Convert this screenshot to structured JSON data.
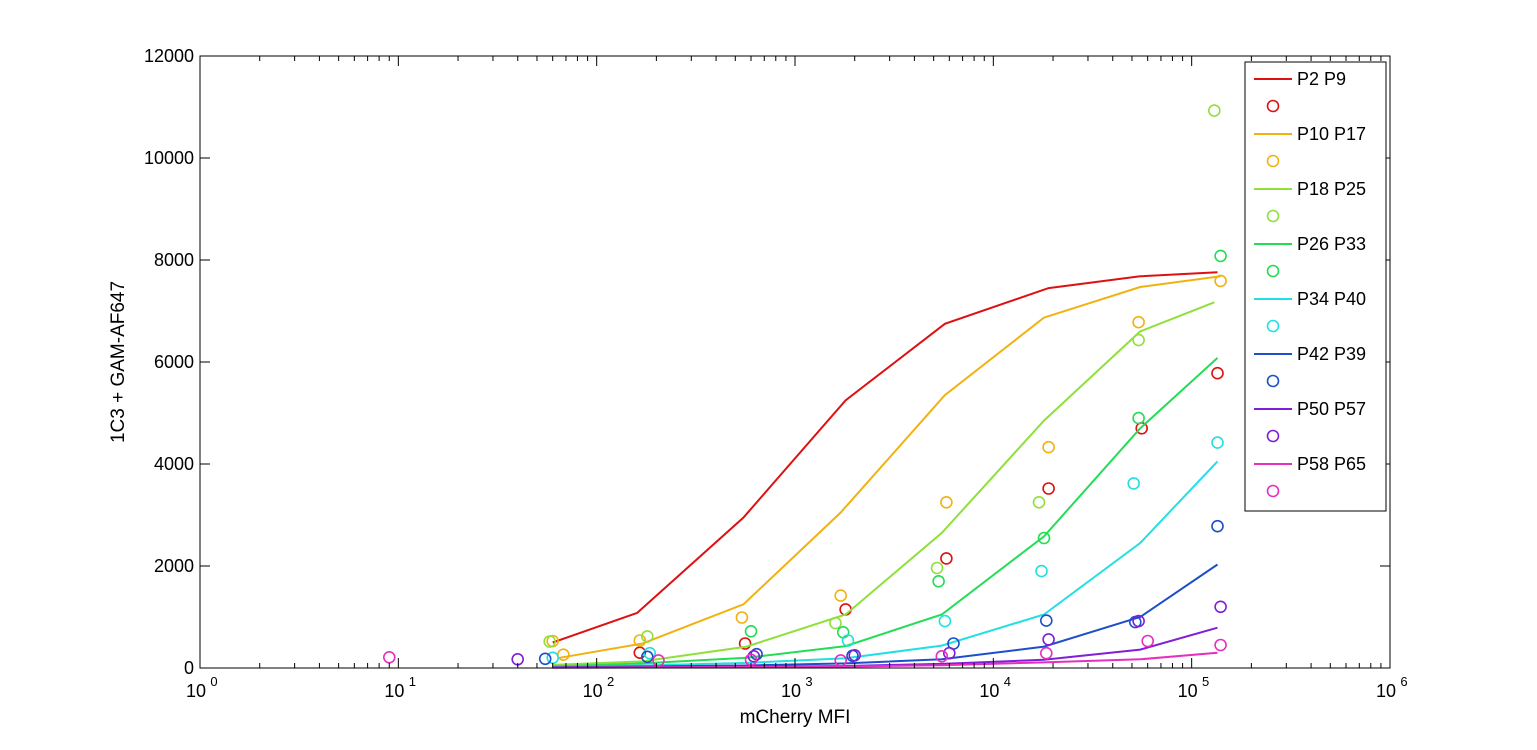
{
  "chart_data": {
    "type": "scatter",
    "title": "",
    "xlabel": "mCherry MFI",
    "ylabel": "1C3 + GAM-AF647",
    "xscale": "log",
    "xlim": [
      1,
      1000000
    ],
    "ylim": [
      0,
      12000
    ],
    "x_ticks": [
      {
        "base": "10",
        "exp": "0"
      },
      {
        "base": "10",
        "exp": "1"
      },
      {
        "base": "10",
        "exp": "2"
      },
      {
        "base": "10",
        "exp": "3"
      },
      {
        "base": "10",
        "exp": "4"
      },
      {
        "base": "10",
        "exp": "5"
      },
      {
        "base": "10",
        "exp": "6"
      }
    ],
    "y_ticks": [
      "0",
      "2000",
      "4000",
      "6000",
      "8000",
      "10000",
      "12000"
    ],
    "y_tick_values": [
      0,
      2000,
      4000,
      6000,
      8000,
      10000,
      12000
    ],
    "grid": false,
    "legend_position": "top-right",
    "series": [
      {
        "name": "P2 P9",
        "color": "#dd1111",
        "line": [
          [
            60,
            500
          ],
          [
            160,
            1080
          ],
          [
            550,
            2950
          ],
          [
            1800,
            5250
          ],
          [
            5700,
            6750
          ],
          [
            19000,
            7450
          ],
          [
            55000,
            7680
          ],
          [
            135000,
            7760
          ]
        ],
        "points": [
          [
            165,
            300
          ],
          [
            560,
            480
          ],
          [
            1800,
            1150
          ],
          [
            5800,
            2150
          ],
          [
            19000,
            3520
          ],
          [
            56000,
            4700
          ],
          [
            135000,
            5780
          ]
        ]
      },
      {
        "name": "P10 P17",
        "color": "#f2b10f",
        "line": [
          [
            65,
            200
          ],
          [
            170,
            480
          ],
          [
            550,
            1250
          ],
          [
            1700,
            3050
          ],
          [
            5700,
            5350
          ],
          [
            18000,
            6870
          ],
          [
            55000,
            7470
          ],
          [
            140000,
            7680
          ]
        ],
        "points": [
          [
            60,
            530
          ],
          [
            68,
            260
          ],
          [
            165,
            540
          ],
          [
            540,
            990
          ],
          [
            1700,
            1420
          ],
          [
            5800,
            3250
          ],
          [
            19000,
            4330
          ],
          [
            54000,
            6780
          ],
          [
            140000,
            7590
          ]
        ]
      },
      {
        "name": "P18 P25",
        "color": "#8fe03a",
        "line": [
          [
            60,
            60
          ],
          [
            170,
            130
          ],
          [
            570,
            420
          ],
          [
            1800,
            1050
          ],
          [
            5500,
            2650
          ],
          [
            18000,
            4850
          ],
          [
            55000,
            6600
          ],
          [
            130000,
            7170
          ]
        ],
        "points": [
          [
            58,
            520
          ],
          [
            180,
            620
          ],
          [
            1600,
            880
          ],
          [
            5200,
            1960
          ],
          [
            17000,
            3250
          ],
          [
            54000,
            6430
          ],
          [
            130000,
            10930
          ]
        ]
      },
      {
        "name": "P26 P33",
        "color": "#22dd55",
        "line": [
          [
            60,
            30
          ],
          [
            170,
            90
          ],
          [
            570,
            200
          ],
          [
            1800,
            430
          ],
          [
            5500,
            1050
          ],
          [
            18000,
            2580
          ],
          [
            55000,
            4700
          ],
          [
            135000,
            6080
          ]
        ],
        "points": [
          [
            600,
            720
          ],
          [
            1750,
            700
          ],
          [
            5300,
            1700
          ],
          [
            18000,
            2550
          ],
          [
            54000,
            4900
          ],
          [
            140000,
            8080
          ]
        ]
      },
      {
        "name": "P34 P40",
        "color": "#22dfe3",
        "line": [
          [
            60,
            20
          ],
          [
            170,
            50
          ],
          [
            570,
            100
          ],
          [
            1800,
            190
          ],
          [
            5500,
            440
          ],
          [
            18000,
            1050
          ],
          [
            55000,
            2450
          ],
          [
            135000,
            4050
          ]
        ],
        "points": [
          [
            60,
            200
          ],
          [
            185,
            290
          ],
          [
            1850,
            540
          ],
          [
            5700,
            920
          ],
          [
            17500,
            1900
          ],
          [
            51000,
            3620
          ],
          [
            135000,
            4420
          ]
        ]
      },
      {
        "name": "P42 P39",
        "color": "#1c4fc8",
        "line": [
          [
            60,
            15
          ],
          [
            170,
            30
          ],
          [
            570,
            50
          ],
          [
            1800,
            90
          ],
          [
            5500,
            170
          ],
          [
            18000,
            420
          ],
          [
            55000,
            1000
          ],
          [
            135000,
            2030
          ]
        ],
        "points": [
          [
            55,
            180
          ],
          [
            180,
            220
          ],
          [
            640,
            270
          ],
          [
            1950,
            240
          ],
          [
            6300,
            480
          ],
          [
            18500,
            930
          ],
          [
            52000,
            900
          ],
          [
            135000,
            2780
          ]
        ]
      },
      {
        "name": "P50 P57",
        "color": "#7f1fd8",
        "line": [
          [
            60,
            10
          ],
          [
            170,
            15
          ],
          [
            570,
            25
          ],
          [
            1800,
            40
          ],
          [
            5500,
            80
          ],
          [
            18000,
            160
          ],
          [
            55000,
            360
          ],
          [
            135000,
            790
          ]
        ],
        "points": [
          [
            40,
            170
          ],
          [
            620,
            230
          ],
          [
            2000,
            250
          ],
          [
            6000,
            290
          ],
          [
            19000,
            560
          ],
          [
            54000,
            920
          ],
          [
            140000,
            1200
          ]
        ]
      },
      {
        "name": "P58 P65",
        "color": "#e62fbf",
        "line": [
          [
            60,
            5
          ],
          [
            170,
            10
          ],
          [
            570,
            20
          ],
          [
            1800,
            30
          ],
          [
            5500,
            55
          ],
          [
            18000,
            110
          ],
          [
            55000,
            170
          ],
          [
            135000,
            300
          ]
        ],
        "points": [
          [
            9,
            210
          ],
          [
            205,
            150
          ],
          [
            600,
            160
          ],
          [
            1700,
            150
          ],
          [
            5500,
            230
          ],
          [
            18500,
            290
          ],
          [
            60000,
            530
          ],
          [
            140000,
            450
          ]
        ]
      }
    ]
  }
}
